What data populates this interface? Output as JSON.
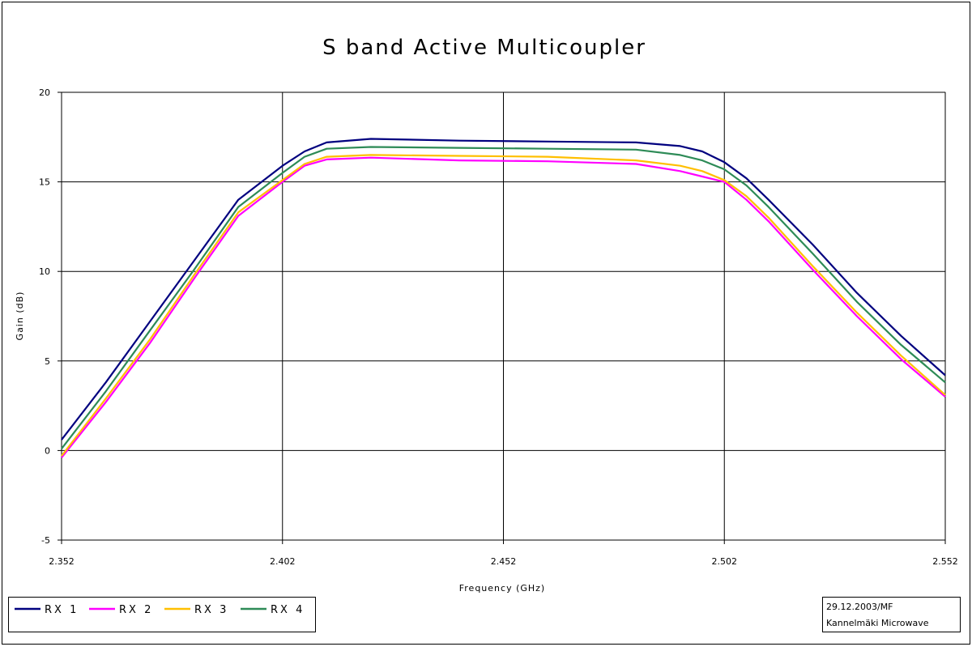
{
  "chart_data": {
    "type": "line",
    "title": "S band Active Multicoupler",
    "xlabel": "Frequency (GHz)",
    "ylabel": "Gain (dB)",
    "xlim": [
      2.352,
      2.552
    ],
    "ylim": [
      -5,
      20
    ],
    "x_ticks": [
      "2.352",
      "2.402",
      "2.452",
      "2.502",
      "2.552"
    ],
    "y_ticks": [
      "20",
      "15",
      "10",
      "5",
      "0",
      "-5"
    ],
    "grid": true,
    "legend_position": "bottom-left",
    "series": [
      {
        "name": "RX 1",
        "color": "#00007f",
        "x": [
          2.352,
          2.362,
          2.372,
          2.382,
          2.392,
          2.402,
          2.407,
          2.412,
          2.422,
          2.442,
          2.462,
          2.482,
          2.492,
          2.497,
          2.502,
          2.507,
          2.512,
          2.522,
          2.532,
          2.542,
          2.552
        ],
        "y": [
          0.6,
          3.8,
          7.2,
          10.6,
          14.0,
          15.9,
          16.7,
          17.2,
          17.4,
          17.3,
          17.25,
          17.2,
          17.0,
          16.7,
          16.1,
          15.2,
          14.0,
          11.5,
          8.8,
          6.4,
          4.2
        ]
      },
      {
        "name": "RX 2",
        "color": "#ff00ff",
        "x": [
          2.352,
          2.362,
          2.372,
          2.382,
          2.392,
          2.402,
          2.407,
          2.412,
          2.422,
          2.442,
          2.462,
          2.482,
          2.492,
          2.497,
          2.502,
          2.507,
          2.512,
          2.522,
          2.532,
          2.542,
          2.552
        ],
        "y": [
          -0.4,
          2.7,
          6.0,
          9.6,
          13.1,
          15.0,
          15.9,
          16.25,
          16.35,
          16.2,
          16.15,
          16.0,
          15.6,
          15.3,
          15.0,
          14.0,
          12.8,
          10.1,
          7.5,
          5.1,
          3.0
        ]
      },
      {
        "name": "RX 3",
        "color": "#ffbf00",
        "x": [
          2.352,
          2.362,
          2.372,
          2.382,
          2.392,
          2.402,
          2.407,
          2.412,
          2.422,
          2.442,
          2.462,
          2.482,
          2.492,
          2.497,
          2.502,
          2.507,
          2.512,
          2.522,
          2.532,
          2.542,
          2.552
        ],
        "y": [
          -0.3,
          2.9,
          6.2,
          9.8,
          13.3,
          15.1,
          16.0,
          16.4,
          16.5,
          16.45,
          16.4,
          16.2,
          15.9,
          15.6,
          15.1,
          14.2,
          13.0,
          10.3,
          7.7,
          5.3,
          3.1
        ]
      },
      {
        "name": "RX 4",
        "color": "#2e8b57",
        "x": [
          2.352,
          2.362,
          2.372,
          2.382,
          2.392,
          2.402,
          2.407,
          2.412,
          2.422,
          2.442,
          2.462,
          2.482,
          2.492,
          2.497,
          2.502,
          2.507,
          2.512,
          2.522,
          2.532,
          2.542,
          2.552
        ],
        "y": [
          0.1,
          3.3,
          6.7,
          10.1,
          13.6,
          15.5,
          16.4,
          16.85,
          16.95,
          16.9,
          16.85,
          16.8,
          16.5,
          16.2,
          15.7,
          14.8,
          13.6,
          11.0,
          8.3,
          5.9,
          3.8
        ]
      }
    ]
  },
  "note": {
    "line1": "29.12.2003/MF",
    "line2": "Kannelmäki Microwave"
  }
}
